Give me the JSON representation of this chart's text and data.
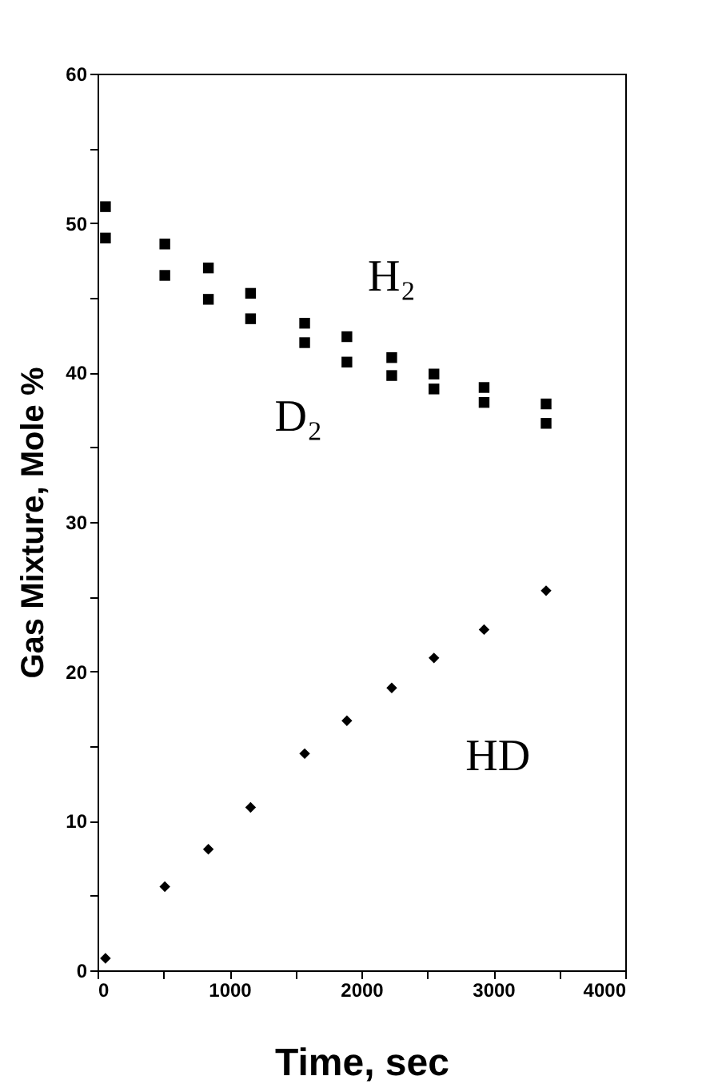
{
  "chart_data": {
    "type": "scatter",
    "xlabel": "Time, sec",
    "ylabel": "Gas Mixture, Mole %",
    "x": [
      60,
      510,
      840,
      1160,
      1570,
      1890,
      2230,
      2550,
      2930,
      3400
    ],
    "series": [
      {
        "name": "H₂",
        "color": "#000000",
        "marker": "square",
        "values": [
          51.1,
          48.6,
          47.0,
          45.3,
          43.3,
          42.4,
          41.0,
          39.9,
          39.0,
          37.9
        ]
      },
      {
        "name": "D₂",
        "color": "#000000",
        "marker": "square",
        "values": [
          49.0,
          46.5,
          44.9,
          43.6,
          42.0,
          40.7,
          39.8,
          38.9,
          38.0,
          36.6
        ]
      },
      {
        "name": "HD",
        "color": "#000000",
        "marker": "diamond",
        "values": [
          0.8,
          5.6,
          8.1,
          10.9,
          14.5,
          16.7,
          18.9,
          20.9,
          22.8,
          25.4
        ]
      }
    ],
    "xlim": [
      0,
      4000
    ],
    "xticks": [
      0,
      {
        "value": 500,
        "label": null
      },
      1000,
      {
        "value": 1500,
        "label": null
      },
      2000,
      {
        "value": 2500,
        "label": null
      },
      3000,
      {
        "value": 3500,
        "label": null
      },
      4000
    ],
    "ylim": [
      0,
      60
    ],
    "yticks": [
      0,
      {
        "value": 5,
        "label": null
      },
      10,
      {
        "value": 15,
        "label": null
      },
      20,
      {
        "value": 25,
        "label": null
      },
      30,
      {
        "value": 35,
        "label": null
      },
      40,
      {
        "value": 45,
        "label": null
      },
      50,
      {
        "value": 55,
        "label": null
      },
      60
    ]
  }
}
